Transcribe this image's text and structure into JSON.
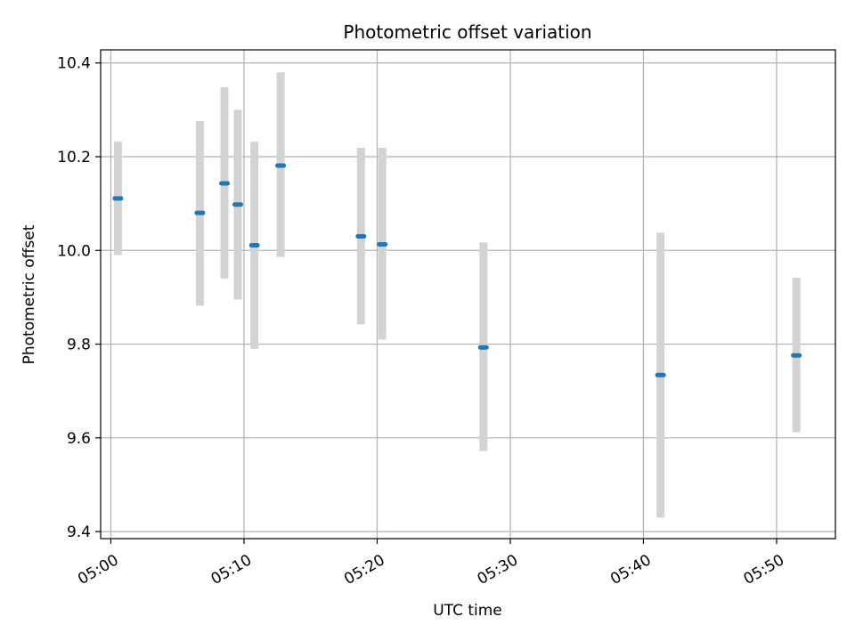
{
  "chart_data": {
    "type": "scatter",
    "title": "Photometric offset variation",
    "xlabel": "UTC time",
    "ylabel": "Photometric offset",
    "xlim": [
      "04:59:14",
      "05:54:25"
    ],
    "ylim": [
      9.385,
      10.428
    ],
    "xticks": [
      "05:00",
      "05:10",
      "05:20",
      "05:30",
      "05:40",
      "05:50"
    ],
    "yticks": [
      9.4,
      9.6,
      9.8,
      10.0,
      10.2,
      10.4
    ],
    "grid": true,
    "errorbar_color": "#d3d3d3",
    "marker_color": "#1f77b4",
    "points": [
      {
        "x": "05:00:32",
        "y": 10.111,
        "yerr_low": 9.99,
        "yerr_high": 10.232
      },
      {
        "x": "05:06:41",
        "y": 10.08,
        "yerr_low": 9.882,
        "yerr_high": 10.276
      },
      {
        "x": "05:08:32",
        "y": 10.143,
        "yerr_low": 9.94,
        "yerr_high": 10.348
      },
      {
        "x": "05:09:32",
        "y": 10.098,
        "yerr_low": 9.895,
        "yerr_high": 10.3
      },
      {
        "x": "05:10:47",
        "y": 10.011,
        "yerr_low": 9.79,
        "yerr_high": 10.232
      },
      {
        "x": "05:12:45",
        "y": 10.181,
        "yerr_low": 9.986,
        "yerr_high": 10.38
      },
      {
        "x": "05:18:47",
        "y": 10.03,
        "yerr_low": 9.842,
        "yerr_high": 10.219
      },
      {
        "x": "05:20:23",
        "y": 10.013,
        "yerr_low": 9.81,
        "yerr_high": 10.219
      },
      {
        "x": "05:27:59",
        "y": 9.793,
        "yerr_low": 9.572,
        "yerr_high": 10.017
      },
      {
        "x": "05:41:17",
        "y": 9.734,
        "yerr_low": 9.43,
        "yerr_high": 10.038
      },
      {
        "x": "05:51:29",
        "y": 9.776,
        "yerr_low": 9.612,
        "yerr_high": 9.942
      }
    ]
  }
}
